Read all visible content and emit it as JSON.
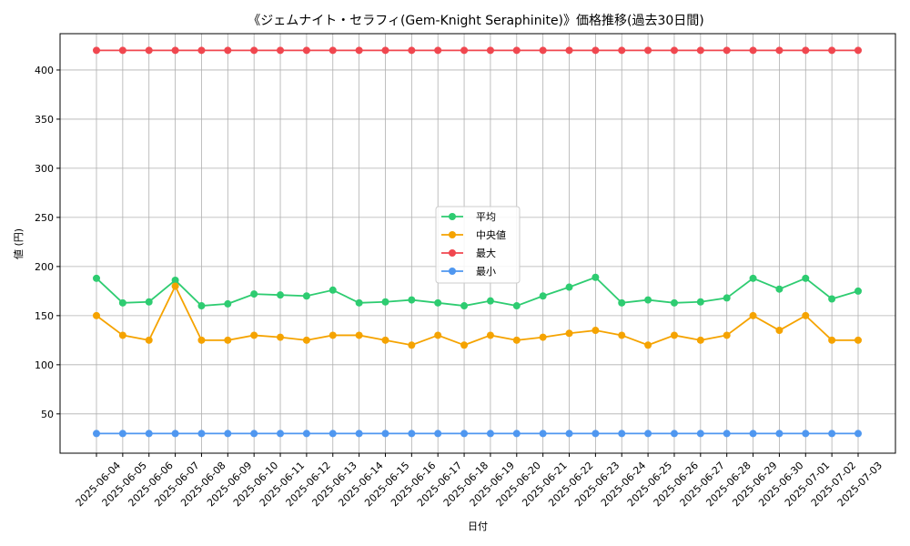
{
  "chart_data": {
    "type": "line",
    "title": "《ジェムナイト・セラフィ(Gem-Knight Seraphinite)》価格推移(過去30日間)",
    "xlabel": "日付",
    "ylabel": "値 (円)",
    "ylim": [
      10,
      437
    ],
    "yticks": [
      50,
      100,
      150,
      200,
      250,
      300,
      350,
      400
    ],
    "grid": true,
    "legend_position": "center",
    "categories": [
      "2025-06-04",
      "2025-06-05",
      "2025-06-06",
      "2025-06-07",
      "2025-06-08",
      "2025-06-09",
      "2025-06-10",
      "2025-06-11",
      "2025-06-12",
      "2025-06-13",
      "2025-06-14",
      "2025-06-15",
      "2025-06-16",
      "2025-06-17",
      "2025-06-18",
      "2025-06-19",
      "2025-06-20",
      "2025-06-21",
      "2025-06-22",
      "2025-06-23",
      "2025-06-24",
      "2025-06-25",
      "2025-06-26",
      "2025-06-27",
      "2025-06-28",
      "2025-06-29",
      "2025-06-30",
      "2025-07-01",
      "2025-07-02",
      "2025-07-03"
    ],
    "series": [
      {
        "name": "平均",
        "color": "#2ecc71",
        "values": [
          188,
          163,
          164,
          186,
          160,
          162,
          172,
          171,
          170,
          176,
          163,
          164,
          166,
          163,
          160,
          165,
          160,
          170,
          179,
          189,
          163,
          166,
          163,
          164,
          168,
          188,
          177,
          188,
          167,
          175
        ]
      },
      {
        "name": "中央値",
        "color": "#f5a300",
        "values": [
          150,
          130,
          125,
          180,
          125,
          125,
          130,
          128,
          125,
          130,
          130,
          125,
          120,
          130,
          120,
          130,
          125,
          128,
          132,
          135,
          130,
          120,
          130,
          125,
          130,
          150,
          135,
          150,
          125,
          125
        ]
      },
      {
        "name": "最大",
        "color": "#f0474f",
        "values": [
          420,
          420,
          420,
          420,
          420,
          420,
          420,
          420,
          420,
          420,
          420,
          420,
          420,
          420,
          420,
          420,
          420,
          420,
          420,
          420,
          420,
          420,
          420,
          420,
          420,
          420,
          420,
          420,
          420,
          420
        ]
      },
      {
        "name": "最小",
        "color": "#4f97f0",
        "values": [
          30,
          30,
          30,
          30,
          30,
          30,
          30,
          30,
          30,
          30,
          30,
          30,
          30,
          30,
          30,
          30,
          30,
          30,
          30,
          30,
          30,
          30,
          30,
          30,
          30,
          30,
          30,
          30,
          30,
          30
        ]
      }
    ]
  }
}
